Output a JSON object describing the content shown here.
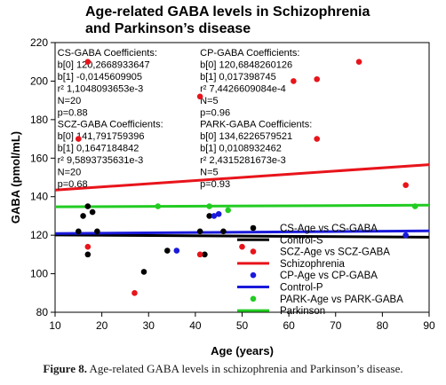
{
  "chart_data": {
    "type": "scatter",
    "title_lines": [
      "Age-related GABA levels in Schizophrenia",
      "and Parkinson’s disease"
    ],
    "xlabel": "Age (years)",
    "ylabel": "GABA (pmol/mL)",
    "xlim": [
      10,
      90
    ],
    "ylim": [
      80,
      220
    ],
    "xticks": [
      10,
      20,
      30,
      40,
      50,
      60,
      70,
      80,
      90
    ],
    "yticks": [
      80,
      100,
      120,
      140,
      160,
      180,
      200,
      220
    ],
    "grid": false,
    "legend_position": "bottom-right",
    "legend": [
      {
        "label": "CS-Age vs CS-GABA",
        "kind": "marker",
        "color": "#000000"
      },
      {
        "label": "Control-S",
        "kind": "line",
        "color": "#000000"
      },
      {
        "label": "SCZ-Age vs SCZ-GABA",
        "kind": "marker",
        "color": "#e8141b"
      },
      {
        "label": "Schizophrenia",
        "kind": "line",
        "color": "#e8141b"
      },
      {
        "label": "CP-Age vs CP-GABA",
        "kind": "marker",
        "color": "#1a1adb"
      },
      {
        "label": "Control-P",
        "kind": "line",
        "color": "#1a1adb"
      },
      {
        "label": "PARK-Age vs PARK-GABA",
        "kind": "marker",
        "color": "#22cc22"
      },
      {
        "label": "Parkinson",
        "kind": "line",
        "color": "#22cc22"
      }
    ],
    "series": [
      {
        "name": "CS-Age vs CS-GABA",
        "color": "#000000",
        "points": [
          [
            15,
            122
          ],
          [
            16,
            130
          ],
          [
            17,
            110
          ],
          [
            17,
            135
          ],
          [
            18,
            132
          ],
          [
            19,
            122
          ],
          [
            29,
            101
          ],
          [
            34,
            112
          ],
          [
            42,
            110
          ],
          [
            43,
            130
          ],
          [
            46,
            122
          ],
          [
            41,
            122
          ]
        ]
      },
      {
        "name": "SCZ-Age vs SCZ-GABA",
        "color": "#e8141b",
        "points": [
          [
            15,
            170
          ],
          [
            17,
            210
          ],
          [
            17,
            114
          ],
          [
            27,
            90
          ],
          [
            41,
            192
          ],
          [
            41,
            110
          ],
          [
            50,
            114
          ],
          [
            61,
            200
          ],
          [
            66,
            201
          ],
          [
            66,
            170
          ],
          [
            75,
            210
          ],
          [
            85,
            146
          ]
        ]
      },
      {
        "name": "CP-Age vs CP-GABA",
        "color": "#1a1adb",
        "points": [
          [
            36,
            112
          ],
          [
            44,
            130
          ],
          [
            45,
            131
          ],
          [
            85,
            120
          ]
        ]
      },
      {
        "name": "PARK-Age vs PARK-GABA",
        "color": "#22cc22",
        "points": [
          [
            32,
            135
          ],
          [
            43,
            135
          ],
          [
            47,
            133
          ],
          [
            87,
            135
          ]
        ]
      }
    ],
    "fits": [
      {
        "name": "Control-S",
        "color": "#000000",
        "intercept": 120.2668933647,
        "slope": -0.0145609905
      },
      {
        "name": "Schizophrenia",
        "color": "#e8141b",
        "intercept": 141.791759396,
        "slope": 0.1647184842
      },
      {
        "name": "Control-P",
        "color": "#1a1adb",
        "intercept": 120.6848260126,
        "slope": 0.017398745
      },
      {
        "name": "Parkinson",
        "color": "#22cc22",
        "intercept": 134.6226579521,
        "slope": 0.0108932462
      }
    ],
    "annotations": [
      {
        "id": "cs",
        "lines": [
          "CS-GABA  Coefficients:",
          "b[0]  120,2668933647",
          "b[1]  -0,0145609905",
          "r²  1,1048093653e-3",
          "N=20",
          "p=0.88"
        ],
        "anchor": [
          10.5,
          213
        ]
      },
      {
        "id": "cp",
        "lines": [
          "CP-GABA  Coefficients:",
          "b[0]  120,6848260126",
          "b[1]  0,017398745",
          "r²  7,4426609084e-4",
          "N=5",
          "p=0.96"
        ],
        "anchor": [
          41,
          213
        ]
      },
      {
        "id": "scz",
        "lines": [
          "SCZ-GABA  Coefficients:",
          "b[0]  141,791759396",
          "b[1]  0,1647184842",
          "r²  9,5893735631e-3",
          "N=20",
          "p=0.68"
        ],
        "anchor": [
          10.5,
          176
        ]
      },
      {
        "id": "park",
        "lines": [
          "PARK-GABA  Coefficients:",
          "b[0]  134,6226579521",
          "b[1]  0,0108932462",
          "r²  2,4315281673e-3",
          "N=5",
          "p=0.93"
        ],
        "anchor": [
          41,
          176
        ]
      }
    ]
  },
  "caption": {
    "label": "Figure 8.",
    "text": " Age-related GABA levels in schizophrenia and Parkinson’s disease."
  }
}
